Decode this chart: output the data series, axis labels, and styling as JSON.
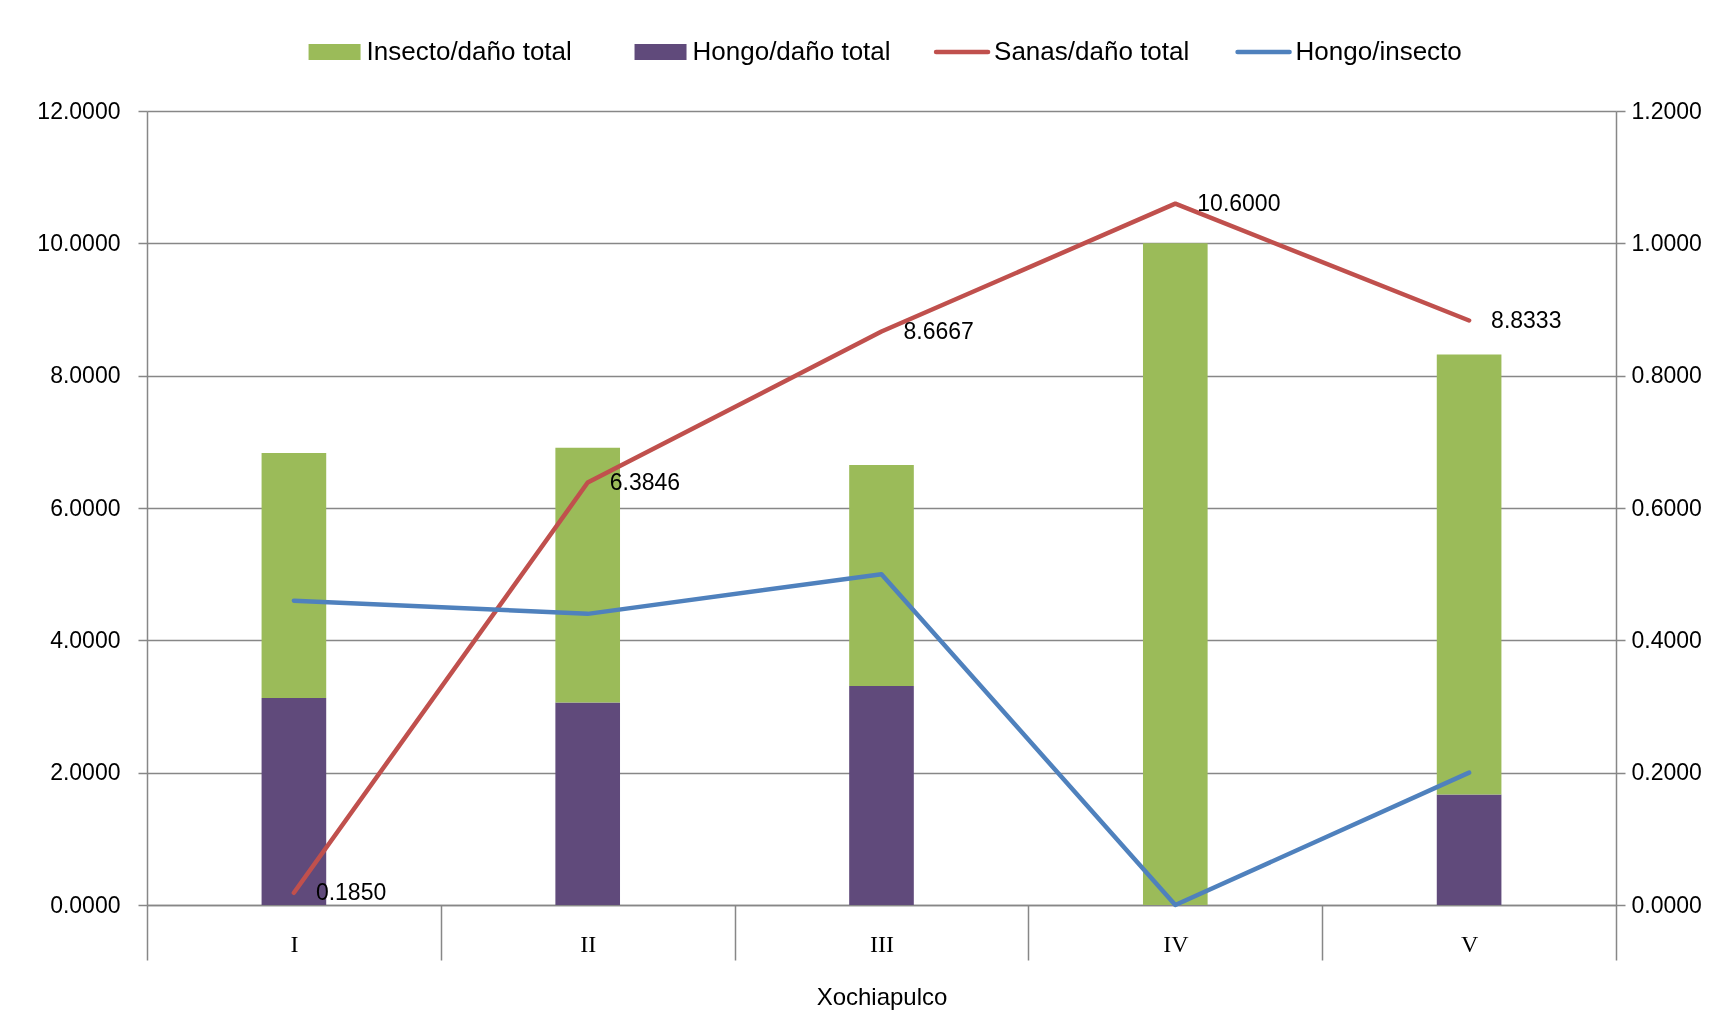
{
  "chart_data": {
    "type": "bar",
    "stacked": true,
    "categories": [
      "I",
      "II",
      "III",
      "IV",
      "V"
    ],
    "xlabel": "Xochiapulco",
    "series": [
      {
        "name": "Hongo/daño total",
        "color": "#604a7b",
        "values": [
          3.13,
          3.06,
          3.31,
          0,
          1.67
        ]
      },
      {
        "name": "Insecto/daño total",
        "color": "#9bbb59",
        "values": [
          3.7,
          3.85,
          3.34,
          10.0,
          6.65
        ]
      },
      {
        "name": "Sanas/daño total",
        "type": "line",
        "color": "#c0504d",
        "values": [
          0.185,
          6.3846,
          8.6667,
          10.6,
          8.8333
        ],
        "value_labels": [
          "0.1850",
          "6.3846",
          "8.6667",
          "10.6000",
          "8.8333"
        ]
      },
      {
        "name": "Hongo/insecto",
        "type": "line",
        "axis": "y2",
        "color": "#4f81bd",
        "values": [
          0.46,
          0.44,
          0.5,
          0,
          0.2
        ]
      }
    ],
    "ylim": [
      0,
      12
    ],
    "yticks": [
      {
        "value": 0,
        "label": "0.0000"
      },
      {
        "value": 2,
        "label": "2.0000"
      },
      {
        "value": 4,
        "label": "4.0000"
      },
      {
        "value": 6,
        "label": "6.0000"
      },
      {
        "value": 8,
        "label": "8.0000"
      },
      {
        "value": 10,
        "label": "10.0000"
      },
      {
        "value": 12,
        "label": "12.0000"
      }
    ],
    "y2lim": [
      0,
      1.2
    ],
    "y2ticks": [
      {
        "value": 0,
        "label": "0.0000"
      },
      {
        "value": 0.2,
        "label": "0.2000"
      },
      {
        "value": 0.4,
        "label": "0.4000"
      },
      {
        "value": 0.6,
        "label": "0.6000"
      },
      {
        "value": 0.8,
        "label": "0.8000"
      },
      {
        "value": 1.0,
        "label": "1.0000"
      },
      {
        "value": 1.2,
        "label": "1.2000"
      }
    ],
    "grid": "y",
    "legend": "top",
    "marker": "none",
    "line_style": "solid"
  }
}
